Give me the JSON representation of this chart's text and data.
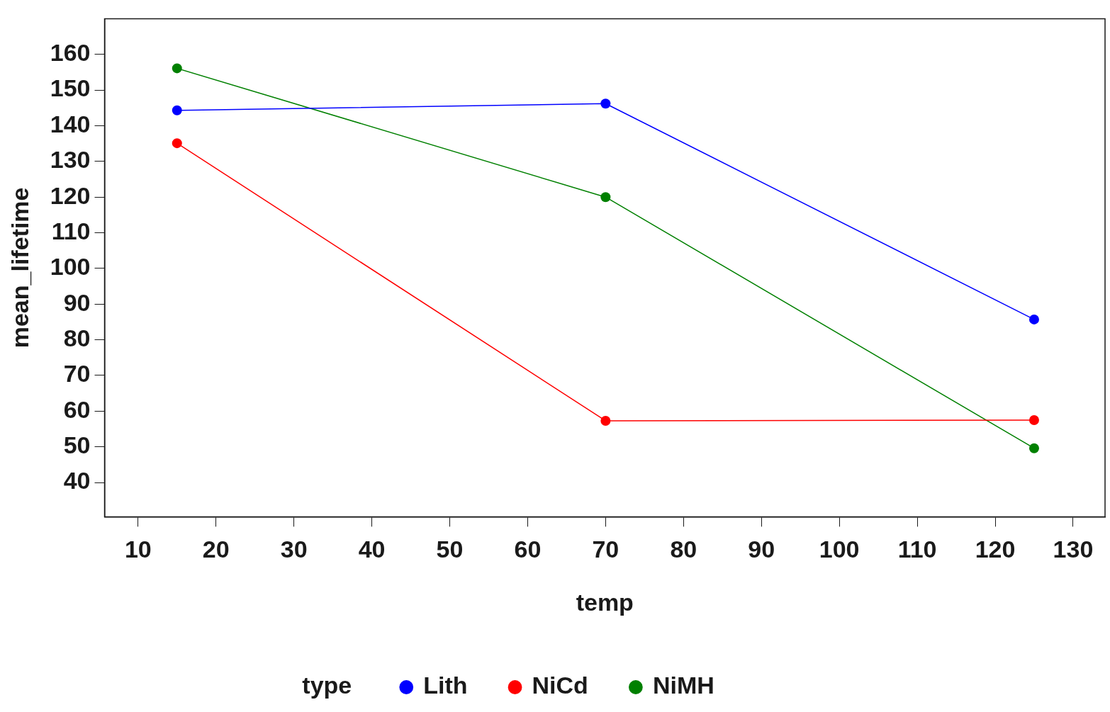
{
  "chart_data": {
    "type": "line",
    "xlabel": "temp",
    "ylabel": "mean_lifetime",
    "legend_title": "type",
    "legend": "bottom",
    "marker": "circle",
    "line_style": "solid",
    "grid": false,
    "xlim": [
      5.7,
      134.1
    ],
    "xticks": [
      10,
      20,
      30,
      40,
      50,
      60,
      70,
      80,
      90,
      100,
      110,
      120,
      130
    ],
    "ylim": [
      30.4,
      170
    ],
    "yticks": [
      40,
      50,
      60,
      70,
      80,
      90,
      100,
      110,
      120,
      130,
      140,
      150,
      160
    ],
    "series": [
      {
        "name": "Lith",
        "color": "#0000ff",
        "x": [
          15,
          70,
          125
        ],
        "values": [
          144.3,
          146.2,
          85.7
        ]
      },
      {
        "name": "NiCd",
        "color": "#ff0000",
        "x": [
          15,
          70,
          125
        ],
        "values": [
          135.1,
          57.3,
          57.5
        ]
      },
      {
        "name": "NiMH",
        "color": "#008000",
        "x": [
          15,
          70,
          125
        ],
        "values": [
          156.1,
          120,
          49.6
        ]
      }
    ]
  }
}
